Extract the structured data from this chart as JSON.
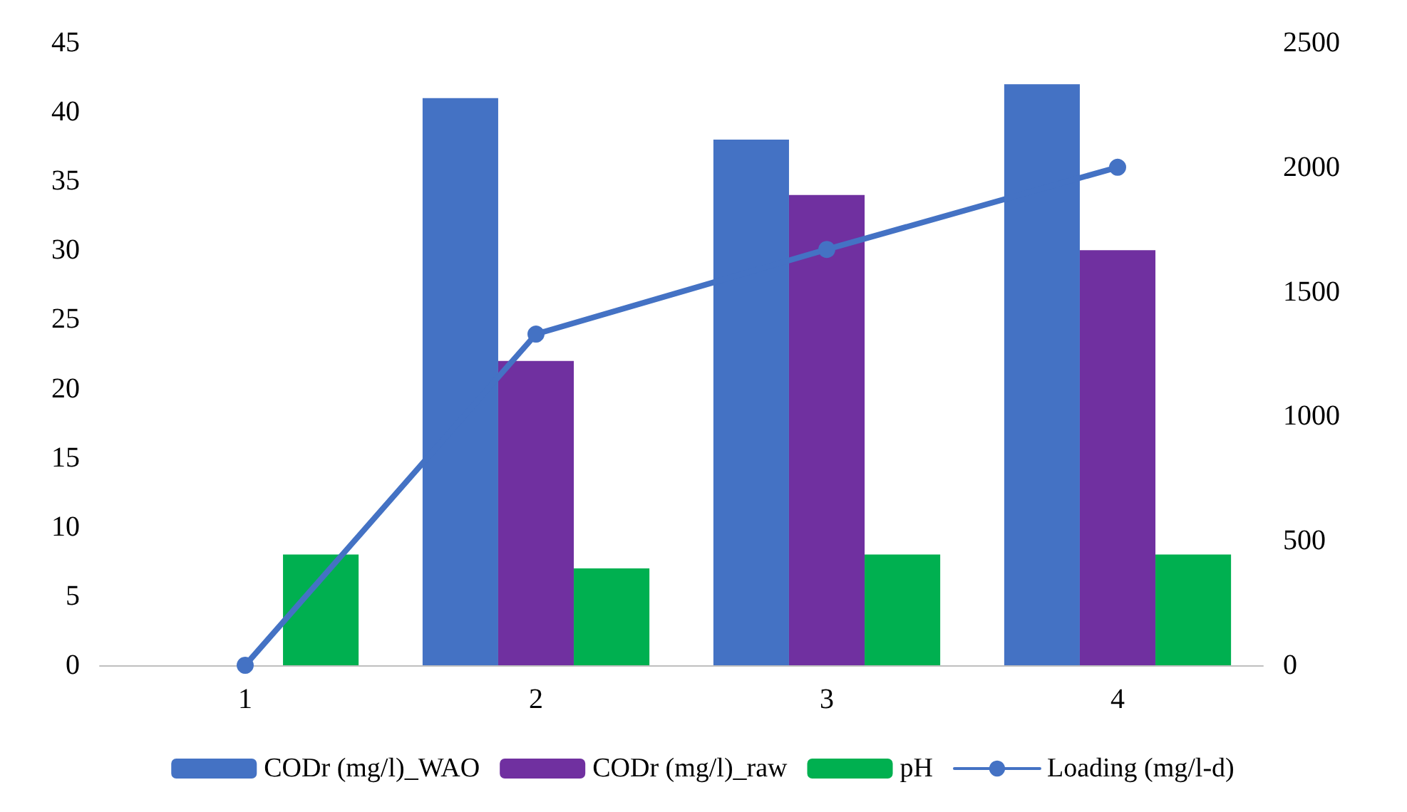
{
  "chart_data": {
    "type": "bar",
    "categories": [
      "1",
      "2",
      "3",
      "4"
    ],
    "series": [
      {
        "name": "CODr (mg/l)_WAO",
        "color": "#4472c4",
        "values": [
          0,
          41,
          38,
          42
        ]
      },
      {
        "name": "CODr (mg/l)_raw",
        "color": "#7030a0",
        "values": [
          0,
          22,
          34,
          30
        ]
      },
      {
        "name": "pH",
        "color": "#00b050",
        "values": [
          8,
          7,
          8,
          8
        ]
      },
      {
        "name": "Loading (mg/l-d)",
        "color": "#4472c4",
        "type": "line",
        "axis": "y2",
        "marker": "circle",
        "line_style": "solid",
        "values": [
          0,
          1330,
          1670,
          2000
        ]
      }
    ],
    "ylim": [
      0,
      45
    ],
    "yticks": [
      0,
      5,
      10,
      15,
      20,
      25,
      30,
      35,
      40,
      45
    ],
    "y2lim": [
      0,
      2500
    ],
    "y2ticks": [
      0,
      500,
      1000,
      1500,
      2000,
      2500
    ],
    "grid": false,
    "legend": "bottom"
  }
}
